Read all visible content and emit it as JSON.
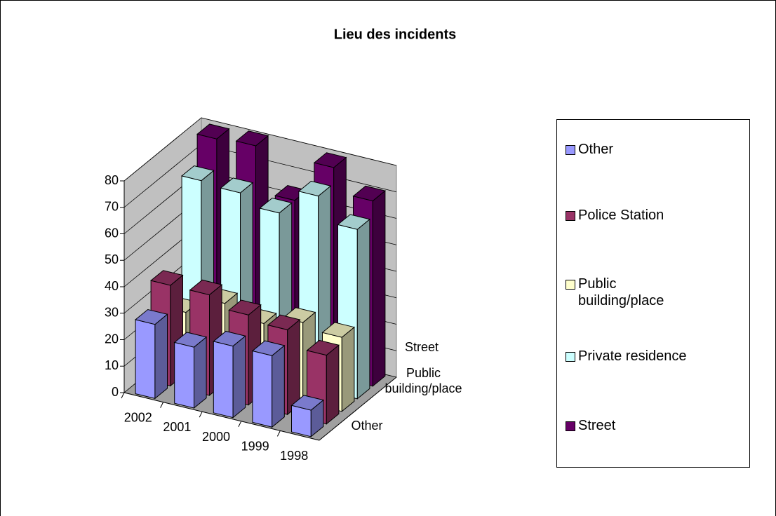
{
  "chart_data": {
    "type": "bar3d",
    "title": "Lieu des incidents",
    "categories": [
      "2002",
      "2001",
      "2000",
      "1999",
      "1998"
    ],
    "series": [
      {
        "name": "Other",
        "color": "#9999ff",
        "values": [
          28,
          23,
          27,
          27,
          10
        ]
      },
      {
        "name": "Police Station",
        "color": "#993366",
        "values": [
          38,
          38,
          34,
          32,
          26
        ]
      },
      {
        "name": "Public building/place",
        "color": "#ffffcc",
        "values": [
          23,
          30,
          26,
          30,
          28
        ]
      },
      {
        "name": "Private residence",
        "color": "#ccffff",
        "values": [
          68,
          67,
          63,
          73,
          64
        ]
      },
      {
        "name": "Street",
        "color": "#660066",
        "values": [
          79,
          80,
          63,
          79,
          70
        ]
      }
    ],
    "ylim": [
      0,
      80
    ],
    "yticks": [
      0,
      10,
      20,
      30,
      40,
      50,
      60,
      70,
      80
    ],
    "grid": true,
    "legend": "right"
  }
}
